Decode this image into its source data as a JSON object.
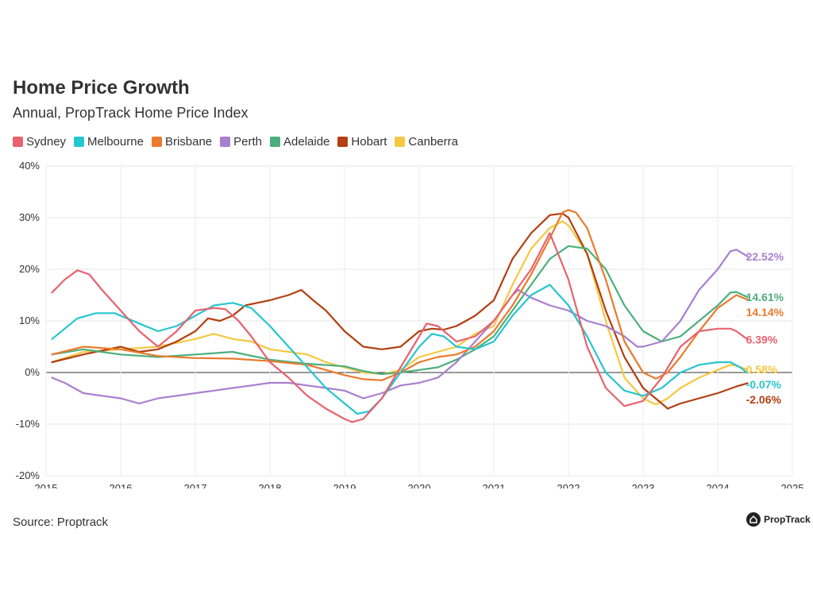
{
  "title": "Home Price Growth",
  "subtitle": "Annual, PropTrack Home Price Index",
  "source": "Source: Proptrack",
  "brand": "PropTrack",
  "brand_icon": "house-logo-icon",
  "chart_data": {
    "type": "line",
    "title": "Home Price Growth",
    "subtitle": "Annual, PropTrack Home Price Index",
    "xlabel": "",
    "ylabel": "",
    "xlim": [
      2015,
      2025
    ],
    "ylim": [
      -20,
      40
    ],
    "x_ticks": [
      "2015",
      "2016",
      "2017",
      "2018",
      "2019",
      "2020",
      "2021",
      "2022",
      "2023",
      "2024",
      "2025"
    ],
    "y_ticks": [
      "-20%",
      "-10%",
      "0%",
      "10%",
      "20%",
      "30%",
      "40%"
    ],
    "grid": true,
    "legend_placement": "top-left",
    "series": [
      {
        "name": "Sydney",
        "color": "#e8626e",
        "end_label": "6.39%",
        "points": [
          [
            2015.08,
            15.5
          ],
          [
            2015.25,
            18
          ],
          [
            2015.42,
            19.8
          ],
          [
            2015.58,
            19
          ],
          [
            2015.75,
            16
          ],
          [
            2016.0,
            12
          ],
          [
            2016.25,
            8
          ],
          [
            2016.5,
            5
          ],
          [
            2016.75,
            8
          ],
          [
            2017.0,
            12
          ],
          [
            2017.25,
            12.5
          ],
          [
            2017.4,
            12.3
          ],
          [
            2017.58,
            10
          ],
          [
            2017.75,
            7
          ],
          [
            2018.0,
            2
          ],
          [
            2018.25,
            -1
          ],
          [
            2018.5,
            -4.5
          ],
          [
            2018.75,
            -7
          ],
          [
            2019.0,
            -9
          ],
          [
            2019.1,
            -9.6
          ],
          [
            2019.25,
            -9
          ],
          [
            2019.5,
            -5
          ],
          [
            2019.75,
            1
          ],
          [
            2020.0,
            7
          ],
          [
            2020.1,
            9.5
          ],
          [
            2020.25,
            9
          ],
          [
            2020.5,
            6
          ],
          [
            2020.75,
            7
          ],
          [
            2021.0,
            10
          ],
          [
            2021.25,
            15
          ],
          [
            2021.5,
            20
          ],
          [
            2021.75,
            27
          ],
          [
            2022.0,
            18
          ],
          [
            2022.25,
            5
          ],
          [
            2022.5,
            -3
          ],
          [
            2022.75,
            -6.5
          ],
          [
            2023.0,
            -5.5
          ],
          [
            2023.25,
            -1
          ],
          [
            2023.5,
            5
          ],
          [
            2023.75,
            8
          ],
          [
            2024.0,
            8.5
          ],
          [
            2024.17,
            8.5
          ],
          [
            2024.25,
            8
          ],
          [
            2024.4,
            6.4
          ]
        ]
      },
      {
        "name": "Melbourne",
        "color": "#26c6cf",
        "end_label": "-0.07%",
        "points": [
          [
            2015.08,
            6.5
          ],
          [
            2015.25,
            8.5
          ],
          [
            2015.42,
            10.5
          ],
          [
            2015.67,
            11.5
          ],
          [
            2015.92,
            11.5
          ],
          [
            2016.25,
            9.5
          ],
          [
            2016.5,
            8
          ],
          [
            2016.75,
            9
          ],
          [
            2017.0,
            11
          ],
          [
            2017.25,
            13
          ],
          [
            2017.5,
            13.5
          ],
          [
            2017.75,
            12.5
          ],
          [
            2018.0,
            9
          ],
          [
            2018.25,
            5
          ],
          [
            2018.5,
            1
          ],
          [
            2018.75,
            -3
          ],
          [
            2019.0,
            -6
          ],
          [
            2019.17,
            -8
          ],
          [
            2019.33,
            -7.5
          ],
          [
            2019.5,
            -5
          ],
          [
            2019.75,
            0
          ],
          [
            2020.0,
            5
          ],
          [
            2020.17,
            7.5
          ],
          [
            2020.33,
            7
          ],
          [
            2020.5,
            5
          ],
          [
            2020.75,
            4.5
          ],
          [
            2021.0,
            6
          ],
          [
            2021.25,
            11
          ],
          [
            2021.5,
            15
          ],
          [
            2021.75,
            17
          ],
          [
            2022.0,
            13
          ],
          [
            2022.25,
            7
          ],
          [
            2022.5,
            0
          ],
          [
            2022.75,
            -3.5
          ],
          [
            2023.0,
            -4.5
          ],
          [
            2023.25,
            -3
          ],
          [
            2023.5,
            0
          ],
          [
            2023.75,
            1.5
          ],
          [
            2024.0,
            2
          ],
          [
            2024.17,
            2
          ],
          [
            2024.3,
            1
          ],
          [
            2024.4,
            -0.07
          ]
        ]
      },
      {
        "name": "Brisbane",
        "color": "#ea7a2c",
        "end_label": "14.14%",
        "points": [
          [
            2015.08,
            3.5
          ],
          [
            2015.5,
            5
          ],
          [
            2016.0,
            4.5
          ],
          [
            2016.5,
            3.2
          ],
          [
            2017.0,
            2.8
          ],
          [
            2017.5,
            2.7
          ],
          [
            2018.0,
            2.2
          ],
          [
            2018.5,
            1.5
          ],
          [
            2018.75,
            0.5
          ],
          [
            2019.0,
            -0.5
          ],
          [
            2019.25,
            -1.3
          ],
          [
            2019.5,
            -1.5
          ],
          [
            2019.75,
            0
          ],
          [
            2020.0,
            2
          ],
          [
            2020.25,
            3
          ],
          [
            2020.5,
            3.5
          ],
          [
            2020.75,
            5
          ],
          [
            2021.0,
            8
          ],
          [
            2021.25,
            13
          ],
          [
            2021.5,
            19
          ],
          [
            2021.75,
            26
          ],
          [
            2021.92,
            31
          ],
          [
            2022.0,
            31.5
          ],
          [
            2022.1,
            31
          ],
          [
            2022.25,
            28
          ],
          [
            2022.5,
            18
          ],
          [
            2022.75,
            6
          ],
          [
            2023.0,
            0
          ],
          [
            2023.17,
            -1.2
          ],
          [
            2023.33,
            0
          ],
          [
            2023.5,
            3
          ],
          [
            2023.75,
            8
          ],
          [
            2024.0,
            12.5
          ],
          [
            2024.25,
            15
          ],
          [
            2024.4,
            14.1
          ]
        ]
      },
      {
        "name": "Perth",
        "color": "#a97fcf",
        "end_label": "22.52%",
        "points": [
          [
            2015.08,
            -1
          ],
          [
            2015.25,
            -2
          ],
          [
            2015.5,
            -4
          ],
          [
            2015.75,
            -4.5
          ],
          [
            2016.0,
            -5
          ],
          [
            2016.25,
            -6
          ],
          [
            2016.5,
            -5
          ],
          [
            2016.75,
            -4.5
          ],
          [
            2017.0,
            -4
          ],
          [
            2017.25,
            -3.5
          ],
          [
            2017.5,
            -3
          ],
          [
            2017.75,
            -2.5
          ],
          [
            2018.0,
            -2
          ],
          [
            2018.25,
            -2
          ],
          [
            2018.5,
            -2.5
          ],
          [
            2018.75,
            -3
          ],
          [
            2019.0,
            -3.5
          ],
          [
            2019.25,
            -5
          ],
          [
            2019.5,
            -4
          ],
          [
            2019.75,
            -2.5
          ],
          [
            2020.0,
            -2
          ],
          [
            2020.25,
            -1
          ],
          [
            2020.5,
            2
          ],
          [
            2020.75,
            6
          ],
          [
            2021.0,
            10
          ],
          [
            2021.25,
            15
          ],
          [
            2021.33,
            16
          ],
          [
            2021.5,
            14.5
          ],
          [
            2021.75,
            13
          ],
          [
            2022.0,
            12
          ],
          [
            2022.25,
            10
          ],
          [
            2022.5,
            9
          ],
          [
            2022.75,
            7
          ],
          [
            2022.92,
            5
          ],
          [
            2023.0,
            5
          ],
          [
            2023.25,
            6
          ],
          [
            2023.5,
            10
          ],
          [
            2023.75,
            16
          ],
          [
            2024.0,
            20
          ],
          [
            2024.17,
            23.5
          ],
          [
            2024.25,
            23.8
          ],
          [
            2024.4,
            22.5
          ]
        ]
      },
      {
        "name": "Adelaide",
        "color": "#4caf7d",
        "end_label": "14.61%",
        "points": [
          [
            2015.08,
            3.5
          ],
          [
            2015.5,
            4.5
          ],
          [
            2016.0,
            3.5
          ],
          [
            2016.5,
            3
          ],
          [
            2017.0,
            3.5
          ],
          [
            2017.5,
            4
          ],
          [
            2018.0,
            2.5
          ],
          [
            2018.5,
            1.7
          ],
          [
            2019.0,
            1.2
          ],
          [
            2019.25,
            0.3
          ],
          [
            2019.5,
            -0.3
          ],
          [
            2019.75,
            0
          ],
          [
            2020.0,
            0.5
          ],
          [
            2020.25,
            1
          ],
          [
            2020.5,
            2.5
          ],
          [
            2020.75,
            4.5
          ],
          [
            2021.0,
            7
          ],
          [
            2021.25,
            12
          ],
          [
            2021.5,
            17
          ],
          [
            2021.75,
            22
          ],
          [
            2022.0,
            24.5
          ],
          [
            2022.25,
            24
          ],
          [
            2022.5,
            20
          ],
          [
            2022.75,
            13
          ],
          [
            2023.0,
            8
          ],
          [
            2023.25,
            6
          ],
          [
            2023.5,
            7
          ],
          [
            2023.75,
            10
          ],
          [
            2024.0,
            13
          ],
          [
            2024.17,
            15.5
          ],
          [
            2024.25,
            15.6
          ],
          [
            2024.4,
            14.6
          ]
        ]
      },
      {
        "name": "Hobart",
        "color": "#b33f12",
        "end_label": "-2.06%",
        "points": [
          [
            2015.08,
            2
          ],
          [
            2015.5,
            3.5
          ],
          [
            2016.0,
            5
          ],
          [
            2016.25,
            4
          ],
          [
            2016.5,
            4.5
          ],
          [
            2016.75,
            6
          ],
          [
            2017.0,
            8
          ],
          [
            2017.17,
            10.5
          ],
          [
            2017.33,
            10
          ],
          [
            2017.5,
            11
          ],
          [
            2017.67,
            13
          ],
          [
            2017.83,
            13.5
          ],
          [
            2018.0,
            14
          ],
          [
            2018.25,
            15
          ],
          [
            2018.42,
            16
          ],
          [
            2018.58,
            14
          ],
          [
            2018.75,
            12
          ],
          [
            2019.0,
            8
          ],
          [
            2019.25,
            5
          ],
          [
            2019.5,
            4.5
          ],
          [
            2019.75,
            5
          ],
          [
            2020.0,
            8
          ],
          [
            2020.17,
            8.5
          ],
          [
            2020.33,
            8.3
          ],
          [
            2020.5,
            9
          ],
          [
            2020.75,
            11
          ],
          [
            2021.0,
            14
          ],
          [
            2021.25,
            22
          ],
          [
            2021.5,
            27
          ],
          [
            2021.75,
            30.5
          ],
          [
            2021.92,
            30.8
          ],
          [
            2022.0,
            30
          ],
          [
            2022.25,
            23
          ],
          [
            2022.5,
            12
          ],
          [
            2022.75,
            3
          ],
          [
            2023.0,
            -3
          ],
          [
            2023.25,
            -6
          ],
          [
            2023.33,
            -7
          ],
          [
            2023.5,
            -6
          ],
          [
            2023.75,
            -5
          ],
          [
            2024.0,
            -4
          ],
          [
            2024.25,
            -2.7
          ],
          [
            2024.4,
            -2.06
          ]
        ]
      },
      {
        "name": "Canberra",
        "color": "#f5c842",
        "end_label": "0.58%",
        "points": [
          [
            2015.08,
            2
          ],
          [
            2015.5,
            4
          ],
          [
            2016.0,
            4.5
          ],
          [
            2016.5,
            5
          ],
          [
            2017.0,
            6.5
          ],
          [
            2017.25,
            7.5
          ],
          [
            2017.5,
            6.5
          ],
          [
            2017.75,
            6
          ],
          [
            2018.0,
            4.5
          ],
          [
            2018.25,
            4
          ],
          [
            2018.5,
            3.5
          ],
          [
            2018.75,
            2
          ],
          [
            2019.0,
            1
          ],
          [
            2019.25,
            0
          ],
          [
            2019.5,
            -0.3
          ],
          [
            2019.75,
            0.5
          ],
          [
            2020.0,
            3
          ],
          [
            2020.25,
            4
          ],
          [
            2020.5,
            5
          ],
          [
            2020.75,
            7.5
          ],
          [
            2021.0,
            9
          ],
          [
            2021.25,
            17
          ],
          [
            2021.5,
            24
          ],
          [
            2021.75,
            28
          ],
          [
            2021.92,
            29.3
          ],
          [
            2022.0,
            28.5
          ],
          [
            2022.25,
            23
          ],
          [
            2022.5,
            10
          ],
          [
            2022.75,
            -1
          ],
          [
            2023.0,
            -5
          ],
          [
            2023.17,
            -6.2
          ],
          [
            2023.33,
            -5
          ],
          [
            2023.5,
            -3
          ],
          [
            2023.75,
            -1
          ],
          [
            2024.0,
            0.5
          ],
          [
            2024.17,
            1.5
          ],
          [
            2024.25,
            1.3
          ],
          [
            2024.4,
            0.58
          ]
        ]
      }
    ]
  }
}
